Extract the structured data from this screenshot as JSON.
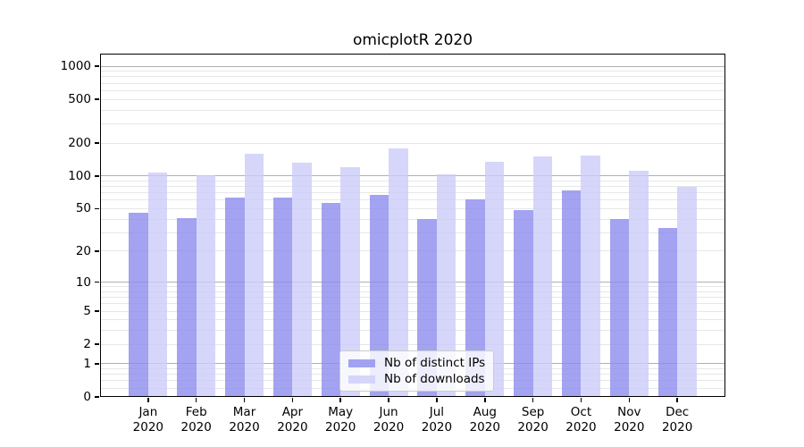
{
  "title": "omicplotR 2020",
  "chart_data": {
    "type": "bar",
    "title": "omicplotR 2020",
    "categories": [
      "Jan 2020",
      "Feb 2020",
      "Mar 2020",
      "Apr 2020",
      "May 2020",
      "Jun 2020",
      "Jul 2020",
      "Aug 2020",
      "Sep 2020",
      "Oct 2020",
      "Nov 2020",
      "Dec 2020"
    ],
    "x_tick_labels": [
      [
        "Jan",
        "2020"
      ],
      [
        "Feb",
        "2020"
      ],
      [
        "Mar",
        "2020"
      ],
      [
        "Apr",
        "2020"
      ],
      [
        "May",
        "2020"
      ],
      [
        "Jun",
        "2020"
      ],
      [
        "Jul",
        "2020"
      ],
      [
        "Aug",
        "2020"
      ],
      [
        "Sep",
        "2020"
      ],
      [
        "Oct",
        "2020"
      ],
      [
        "Nov",
        "2020"
      ],
      [
        "Dec",
        "2020"
      ]
    ],
    "series": [
      {
        "name": "Nb of distinct IPs",
        "color": "rgba(140,140,238,0.8)",
        "values": [
          46,
          41,
          63,
          63,
          56,
          67,
          40,
          61,
          49,
          74,
          40,
          33
        ]
      },
      {
        "name": "Nb of downloads",
        "color": "rgba(204,204,250,0.8)",
        "values": [
          108,
          101,
          161,
          132,
          121,
          178,
          104,
          135,
          150,
          155,
          112,
          80
        ]
      }
    ],
    "yscale": "log1p",
    "ylabel": "",
    "xlabel": "",
    "y_ticks": [
      0,
      1,
      2,
      5,
      10,
      20,
      50,
      100,
      200,
      500,
      1000
    ],
    "y_major_gridlines": [
      1,
      10,
      100,
      1000
    ],
    "y_minor_gridlines": [
      0.2,
      0.4,
      0.6,
      0.8,
      2,
      3,
      4,
      5,
      6,
      7,
      8,
      9,
      20,
      30,
      40,
      50,
      60,
      70,
      80,
      90,
      200,
      300,
      400,
      500,
      600,
      700,
      800,
      900
    ],
    "ylim": [
      0,
      1300
    ],
    "grid": "both",
    "legend_position": "lower center",
    "colors": {
      "major_grid": "#b0b0b0",
      "minor_grid": "#e7e7e7",
      "axis": "#000000",
      "legend_border": "#cccccc"
    }
  }
}
